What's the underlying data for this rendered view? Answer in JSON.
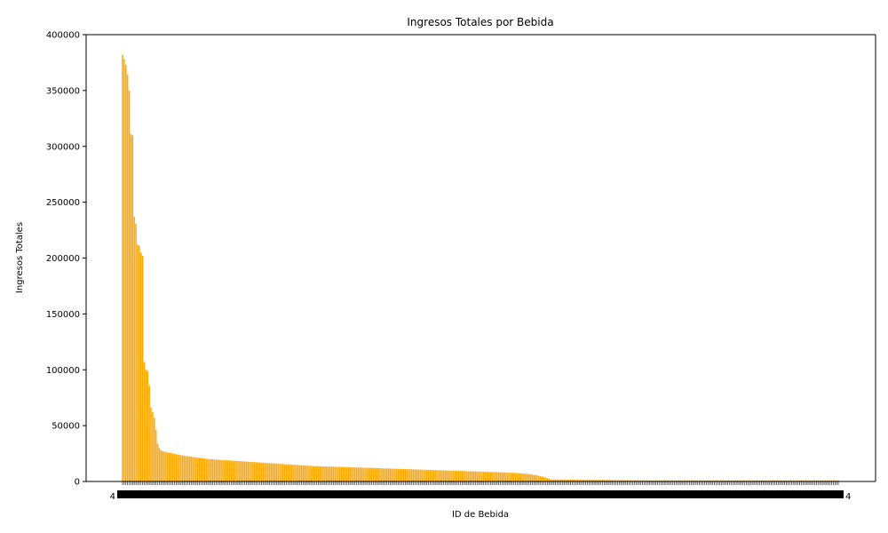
{
  "chart_data": {
    "type": "bar",
    "title": "Ingresos Totales por Bebida",
    "xlabel": "ID de Bebida",
    "ylabel": "Ingresos Totales",
    "ylim": [
      0,
      400000
    ],
    "yticks": [
      0,
      50000,
      100000,
      150000,
      200000,
      250000,
      300000,
      350000,
      400000
    ],
    "color": "#FFA500",
    "grid": false,
    "legend": "none",
    "category_count": 420,
    "category_labels_legible": false,
    "visible_tick_fragments": [
      "4",
      "4"
    ],
    "values": [
      382000,
      378000,
      373000,
      364000,
      350000,
      311000,
      310000,
      237000,
      231000,
      212000,
      211000,
      205000,
      202000,
      107000,
      100000,
      99000,
      86000,
      66000,
      62000,
      57000,
      46000,
      34000,
      30000,
      27800,
      27200,
      26800,
      26400,
      26000,
      25700,
      25400,
      25100,
      24800,
      24500,
      24200,
      23900,
      23600,
      23300,
      23000,
      22800,
      22600,
      22400,
      22200,
      22000,
      21800,
      21600,
      21400,
      21200,
      21000,
      20800,
      20600,
      20400,
      20200,
      20000,
      19900,
      19800,
      19700,
      19600,
      19500,
      19400,
      19300,
      19200,
      19100,
      19000,
      18900,
      18800,
      18700,
      18600,
      18500,
      18400,
      18300,
      18200,
      18100,
      18000,
      17900,
      17800,
      17700,
      17600,
      17500,
      17400,
      17300,
      17200,
      17100,
      17000,
      16900,
      16800,
      16700,
      16600,
      16500,
      16400,
      16300,
      16200,
      16100,
      16000,
      15900,
      15800,
      15700,
      15600,
      15500,
      15400,
      15300,
      15200,
      15100,
      15000,
      14900,
      14800,
      14700,
      14600,
      14500,
      14400,
      14300,
      14200,
      14100,
      14000,
      13900,
      13850,
      13800,
      13750,
      13700,
      13650,
      13600,
      13550,
      13500,
      13450,
      13400,
      13350,
      13300,
      13250,
      13200,
      13150,
      13100,
      13050,
      13000,
      12950,
      12900,
      12850,
      12800,
      12750,
      12700,
      12650,
      12600,
      12550,
      12500,
      12450,
      12400,
      12350,
      12300,
      12250,
      12200,
      12150,
      12100,
      12050,
      12000,
      11950,
      11900,
      11850,
      11800,
      11750,
      11700,
      11650,
      11600,
      11550,
      11500,
      11450,
      11400,
      11350,
      11300,
      11250,
      11200,
      11150,
      11100,
      11050,
      11000,
      10950,
      10900,
      10850,
      10800,
      10750,
      10700,
      10650,
      10600,
      10550,
      10500,
      10450,
      10400,
      10350,
      10300,
      10250,
      10200,
      10150,
      10100,
      10050,
      10000,
      9950,
      9900,
      9850,
      9800,
      9750,
      9700,
      9650,
      9600,
      9550,
      9500,
      9450,
      9400,
      9350,
      9300,
      9250,
      9200,
      9150,
      9100,
      9050,
      9000,
      8950,
      8900,
      8850,
      8800,
      8750,
      8700,
      8650,
      8600,
      8550,
      8500,
      8450,
      8400,
      8350,
      8300,
      8250,
      8200,
      8150,
      8100,
      8050,
      8000,
      7900,
      7800,
      7700,
      7600,
      7500,
      7400,
      7300,
      7200,
      7100,
      7000,
      6800,
      6600,
      6400,
      6200,
      6000,
      5700,
      5400,
      5100,
      4800,
      4400,
      4000,
      3500,
      3000,
      2500,
      2000,
      1800,
      1800,
      1800,
      1700,
      1700,
      1700,
      1700,
      1700,
      1600,
      1600,
      1600,
      1600,
      1600,
      1600,
      1500,
      1500,
      1500,
      1500,
      1500,
      1500,
      1500,
      1400,
      1400,
      1400,
      1400,
      1400,
      1400,
      1400,
      1300,
      1300,
      1300,
      1300,
      1300,
      1300,
      1300,
      1300,
      1200,
      1200,
      1200,
      1200,
      1200,
      1200,
      1200,
      1200,
      1200,
      1100,
      1100,
      1100,
      1100,
      1100,
      1100,
      1100,
      1100,
      1100,
      1100,
      1000,
      1000,
      1000,
      1000,
      1000,
      1000,
      1000,
      1000,
      1000,
      1000,
      1000,
      1000,
      1000,
      1000,
      1000,
      1000,
      1000,
      1000,
      1000,
      1000,
      1000,
      1000,
      1000,
      1000,
      1000,
      1000,
      1000,
      1000,
      1000,
      1000,
      1000,
      1000,
      1000,
      1000,
      1000,
      1000,
      1000,
      1000,
      1000,
      1000,
      1000,
      1000,
      1000,
      1000,
      1000,
      1000,
      1000,
      1000,
      1000,
      1000,
      1000,
      1000,
      1000,
      1000,
      1000,
      1000,
      1000,
      1000,
      1000,
      1000,
      1000,
      1000,
      1000,
      1000,
      1000,
      1000,
      1000,
      1000,
      1000,
      1000,
      1000,
      1000,
      1000,
      1000,
      1000,
      1000,
      1000,
      1000,
      1000,
      1000,
      1000,
      1000,
      1000,
      1000,
      1000,
      1000,
      1000,
      1000,
      1000,
      1000,
      1000,
      1000,
      1000,
      1000,
      1000,
      1000,
      1000,
      1000,
      1000,
      1000,
      1000,
      1000,
      1000,
      1000,
      1000,
      1000,
      1000,
      1000,
      1000,
      1000,
      1000,
      1000,
      1000,
      1000,
      1000,
      1000,
      1000
    ]
  }
}
